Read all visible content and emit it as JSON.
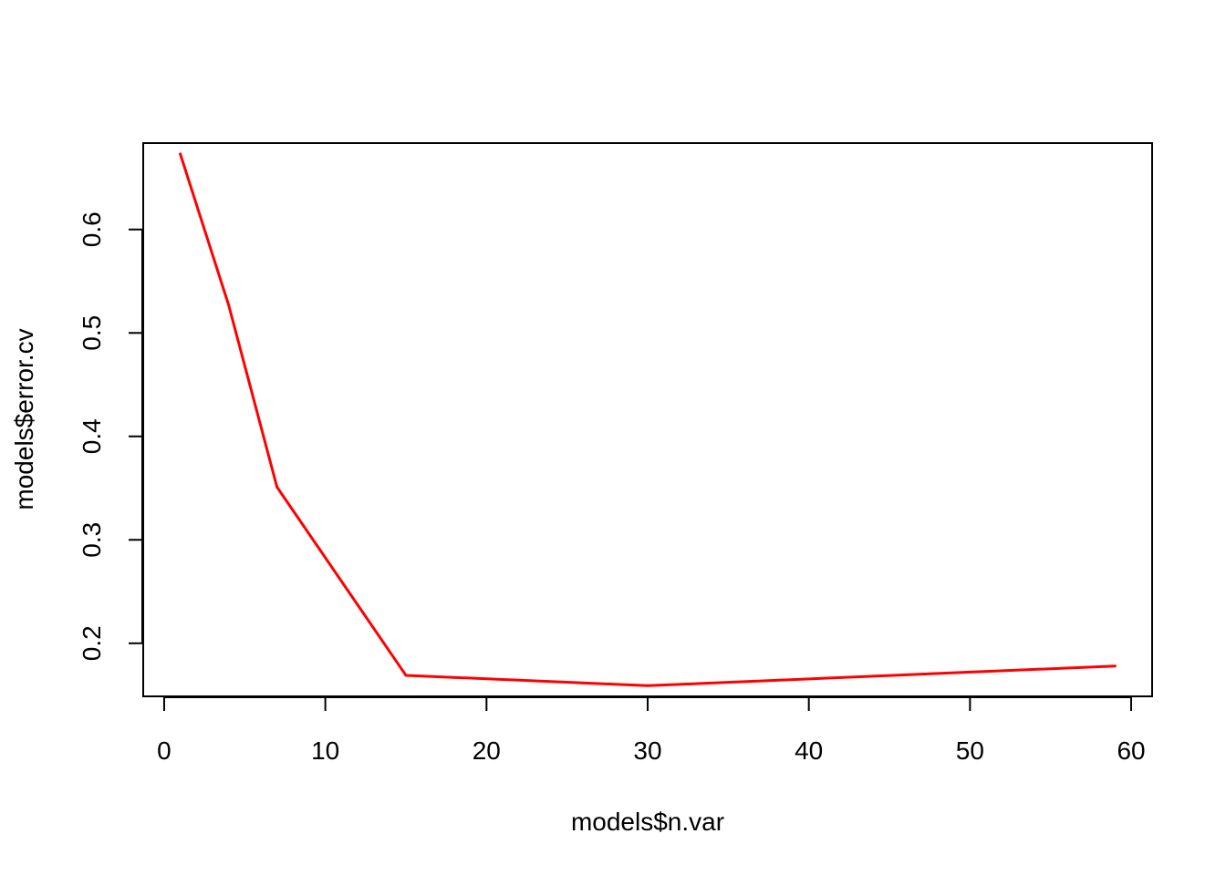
{
  "chart_data": {
    "type": "line",
    "title": "",
    "xlabel": "models$n.var",
    "ylabel": "models$error.cv",
    "xlim": [
      -1.3,
      61.3
    ],
    "ylim": [
      0.1487,
      0.6835
    ],
    "x_ticks": [
      0,
      10,
      20,
      30,
      40,
      50,
      60
    ],
    "y_ticks": [
      0.2,
      0.3,
      0.4,
      0.5,
      0.6
    ],
    "x_tick_labels": [
      "0",
      "10",
      "20",
      "30",
      "40",
      "50",
      "60"
    ],
    "y_tick_labels": [
      "0.2",
      "0.3",
      "0.4",
      "0.5",
      "0.6"
    ],
    "grid": false,
    "series": [
      {
        "color": "#ff0000",
        "x": [
          1,
          4,
          7,
          15,
          30,
          59
        ],
        "y": [
          0.673,
          0.527,
          0.351,
          0.169,
          0.159,
          0.178
        ]
      }
    ]
  }
}
